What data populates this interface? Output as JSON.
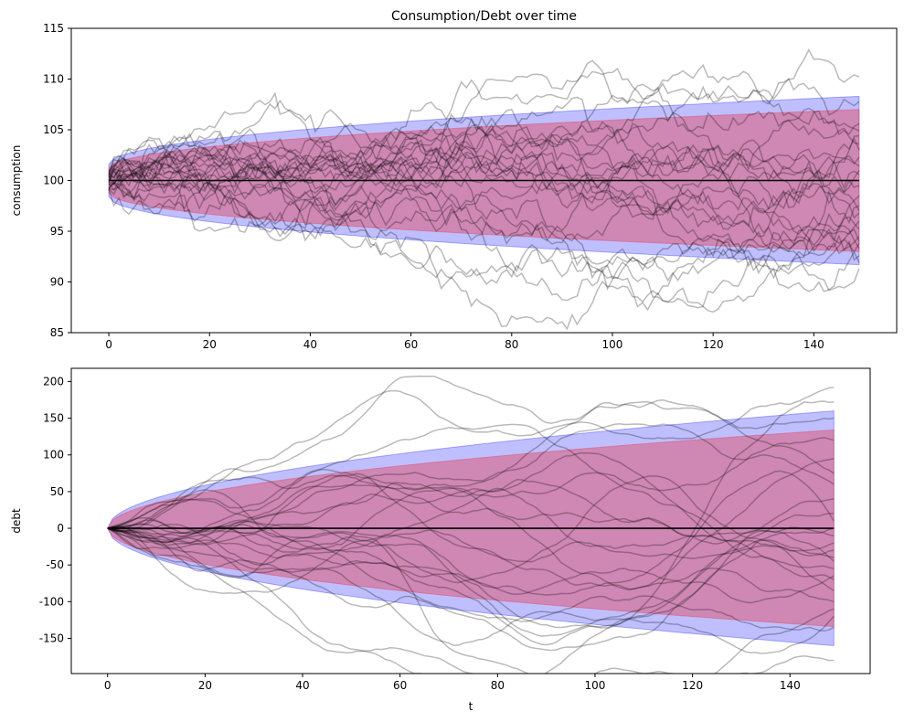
{
  "chart_data": [
    {
      "type": "line",
      "title": "Consumption/Debt over time",
      "xlabel": "",
      "ylabel": "consumption",
      "xlim": [
        -7.45,
        156.45
      ],
      "ylim": [
        85,
        115
      ],
      "xticks": [
        0,
        20,
        40,
        60,
        80,
        100,
        120,
        140
      ],
      "yticks": [
        85,
        90,
        95,
        100,
        105,
        110,
        115
      ],
      "grid": false,
      "n_steps": 150,
      "n_paths": 25,
      "mean": 100.0,
      "outer_band": {
        "color": "#0000ff",
        "opacity": 0.25,
        "at_t0": [
          98.4,
          101.6
        ],
        "at_t149": [
          91.7,
          108.3
        ]
      },
      "inner_band": {
        "color": "#e0506a",
        "opacity": 0.5,
        "at_t0": [
          98.8,
          101.2
        ],
        "at_t149": [
          93.0,
          107.0
        ]
      },
      "path_color": "#000000",
      "path_opacity": 0.27,
      "path_endpoints": [
        110.2,
        107.8,
        105.6,
        104.4,
        103.6,
        103.0,
        102.3,
        101.4,
        100.6,
        99.5,
        98.5,
        97.5,
        96.8,
        96.0,
        95.2,
        94.5,
        93.8,
        93.3,
        92.6,
        91.9,
        91.3,
        97.0,
        101.0,
        94.0,
        104.9
      ],
      "path_extremes": {
        "max": 110.2,
        "min": 89.5
      }
    },
    {
      "type": "line",
      "title": "",
      "xlabel": "t",
      "ylabel": "debt",
      "xlim": [
        -7.45,
        156.45
      ],
      "ylim": [
        -198,
        218
      ],
      "xticks": [
        0,
        20,
        40,
        60,
        80,
        100,
        120,
        140
      ],
      "yticks": [
        -150,
        -100,
        -50,
        0,
        50,
        100,
        150,
        200
      ],
      "grid": false,
      "n_steps": 150,
      "n_paths": 25,
      "mean": 0,
      "outer_band": {
        "color": "#0000ff",
        "opacity": 0.25,
        "at_t0": [
          0,
          0
        ],
        "at_t149": [
          -160,
          160
        ]
      },
      "inner_band": {
        "color": "#e0506a",
        "opacity": 0.5,
        "at_t0": [
          0,
          0
        ],
        "at_t149": [
          -134,
          134
        ]
      },
      "path_color": "#000000",
      "path_opacity": 0.27,
      "path_endpoints": [
        192,
        172,
        120,
        95,
        60,
        40,
        20,
        10,
        0,
        -10,
        -20,
        -30,
        -45,
        -55,
        -70,
        -85,
        -100,
        -110,
        -120,
        -135,
        -180,
        -65,
        75,
        -40,
        150
      ],
      "path_extremes": {
        "max": 195,
        "min": -180
      }
    }
  ]
}
